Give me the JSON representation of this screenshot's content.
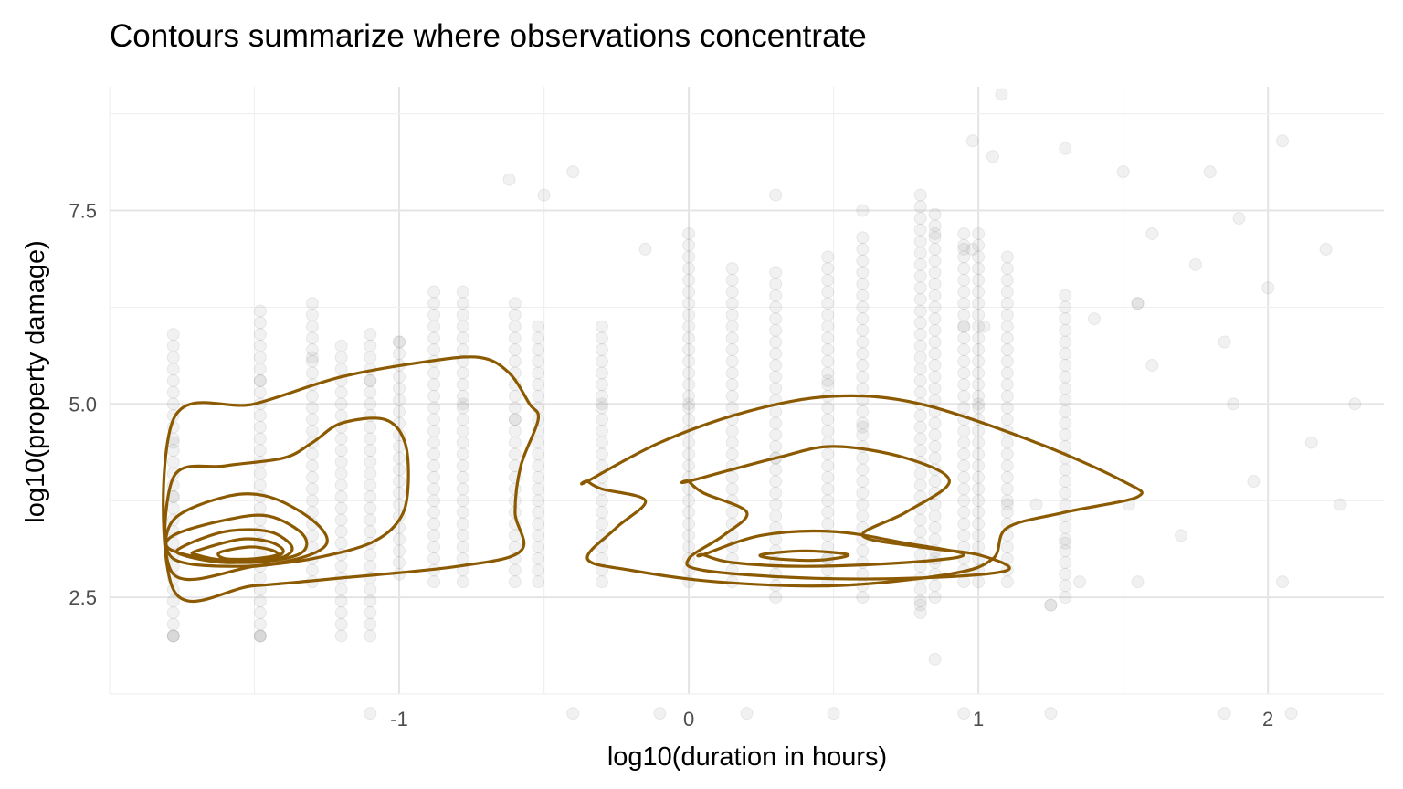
{
  "chart_data": {
    "type": "scatter",
    "title": "Contours summarize where observations concentrate",
    "xlabel": "log10(duration in hours)",
    "ylabel": "log10(property damage)",
    "xlim": [
      -2.0,
      2.4
    ],
    "ylim": [
      1.25,
      9.1
    ],
    "x_ticks": [
      -1,
      0,
      1,
      2
    ],
    "x_tick_labels": [
      "-1",
      "0",
      "1",
      "2"
    ],
    "y_ticks": [
      2.5,
      5.0,
      7.5
    ],
    "y_tick_labels": [
      "2.5",
      "5.0",
      "7.5"
    ],
    "grid": true,
    "legend": "none",
    "colors": {
      "points": "#8c8c8c",
      "contours": "#8B5A00",
      "grid": "#e4e4e4"
    },
    "point_columns": {
      "x": [
        -1.78,
        -1.48,
        -1.3,
        -1.2,
        -1.1,
        -1.0,
        -0.88,
        -0.78,
        -0.6,
        -0.52,
        -0.3,
        0.0,
        0.15,
        0.3,
        0.48,
        0.6,
        0.8,
        0.85,
        0.95,
        1.0,
        1.1,
        1.3
      ],
      "y_min": [
        2.0,
        2.0,
        2.7,
        2.0,
        2.0,
        2.8,
        2.7,
        2.7,
        2.7,
        2.7,
        2.7,
        2.7,
        2.7,
        2.5,
        2.7,
        2.5,
        2.3,
        2.5,
        2.7,
        2.7,
        2.7,
        2.5
      ],
      "y_max": [
        6.0,
        6.2,
        6.3,
        5.8,
        5.9,
        5.8,
        6.5,
        6.5,
        6.3,
        6.0,
        6.0,
        7.2,
        6.8,
        6.8,
        7.0,
        7.2,
        7.7,
        7.5,
        7.3,
        7.2,
        7.0,
        6.5
      ]
    },
    "point_scatter": [
      {
        "x": 1.08,
        "y": 9.0
      },
      {
        "x": 0.98,
        "y": 8.4
      },
      {
        "x": 1.05,
        "y": 8.2
      },
      {
        "x": 1.3,
        "y": 8.3
      },
      {
        "x": 1.5,
        "y": 8.0
      },
      {
        "x": 1.8,
        "y": 8.0
      },
      {
        "x": 2.05,
        "y": 8.4
      },
      {
        "x": 1.6,
        "y": 7.2
      },
      {
        "x": 1.9,
        "y": 7.4
      },
      {
        "x": 2.2,
        "y": 7.0
      },
      {
        "x": 2.0,
        "y": 6.5
      },
      {
        "x": 2.3,
        "y": 5.0
      },
      {
        "x": 2.15,
        "y": 4.5
      },
      {
        "x": 1.75,
        "y": 6.8
      },
      {
        "x": 1.4,
        "y": 6.1
      },
      {
        "x": 1.6,
        "y": 5.5
      },
      {
        "x": 1.85,
        "y": 5.8
      },
      {
        "x": 1.95,
        "y": 4.0
      },
      {
        "x": 2.25,
        "y": 3.7
      },
      {
        "x": 1.7,
        "y": 3.3
      },
      {
        "x": 1.35,
        "y": 2.7
      },
      {
        "x": 1.55,
        "y": 2.7
      },
      {
        "x": 2.05,
        "y": 2.7
      },
      {
        "x": 0.5,
        "y": 1.0
      },
      {
        "x": 0.95,
        "y": 1.0
      },
      {
        "x": 1.25,
        "y": 1.0
      },
      {
        "x": 1.85,
        "y": 1.0
      },
      {
        "x": 2.08,
        "y": 1.0
      },
      {
        "x": 0.2,
        "y": 1.0
      },
      {
        "x": -0.4,
        "y": 1.0
      },
      {
        "x": -0.1,
        "y": 1.0
      },
      {
        "x": -1.1,
        "y": 1.0
      },
      {
        "x": 0.85,
        "y": 1.7
      },
      {
        "x": -0.5,
        "y": 7.7
      },
      {
        "x": -0.4,
        "y": 8.0
      },
      {
        "x": -0.62,
        "y": 7.9
      },
      {
        "x": -0.15,
        "y": 7.0
      },
      {
        "x": 0.3,
        "y": 7.7
      },
      {
        "x": 0.6,
        "y": 7.5
      },
      {
        "x": 1.55,
        "y": 6.3
      },
      {
        "x": 1.02,
        "y": 6.0
      },
      {
        "x": 0.98,
        "y": 7.0
      },
      {
        "x": 1.88,
        "y": 5.0
      },
      {
        "x": 1.25,
        "y": 2.4
      },
      {
        "x": -1.48,
        "y": 2.0
      },
      {
        "x": -1.78,
        "y": 2.0
      },
      {
        "x": 1.52,
        "y": 3.7
      },
      {
        "x": 1.2,
        "y": 3.7
      }
    ],
    "point_highlights": [
      {
        "x": -1.78,
        "y": 2.0
      },
      {
        "x": -1.48,
        "y": 2.0
      },
      {
        "x": -1.78,
        "y": 3.8
      },
      {
        "x": -1.78,
        "y": 4.5
      },
      {
        "x": -1.48,
        "y": 5.3
      },
      {
        "x": -1.3,
        "y": 5.6
      },
      {
        "x": -1.1,
        "y": 5.3
      },
      {
        "x": -1.0,
        "y": 5.8
      },
      {
        "x": -0.78,
        "y": 5.0
      },
      {
        "x": -0.6,
        "y": 4.8
      },
      {
        "x": -0.3,
        "y": 5.0
      },
      {
        "x": 0.0,
        "y": 5.0
      },
      {
        "x": 0.3,
        "y": 4.3
      },
      {
        "x": 0.48,
        "y": 5.3
      },
      {
        "x": 0.6,
        "y": 4.7
      },
      {
        "x": 0.85,
        "y": 7.2
      },
      {
        "x": 0.95,
        "y": 6.0
      },
      {
        "x": 0.95,
        "y": 7.0
      },
      {
        "x": 1.0,
        "y": 5.0
      },
      {
        "x": 1.1,
        "y": 3.7
      },
      {
        "x": 1.3,
        "y": 3.2
      },
      {
        "x": 1.55,
        "y": 6.3
      },
      {
        "x": 0.8,
        "y": 2.4
      },
      {
        "x": 1.25,
        "y": 2.4
      },
      {
        "x": 0.85,
        "y": 3.0
      },
      {
        "x": 0.48,
        "y": 3.0
      }
    ],
    "contours": [
      {
        "name": "",
        "points": [
          [
            -1.78,
            4.8
          ],
          [
            -1.5,
            5.0
          ],
          [
            -1.2,
            5.35
          ],
          [
            -0.9,
            5.55
          ],
          [
            -0.72,
            5.6
          ],
          [
            -0.62,
            5.4
          ],
          [
            -0.55,
            5.0
          ],
          [
            -0.52,
            4.8
          ],
          [
            -0.58,
            4.2
          ],
          [
            -0.6,
            3.6
          ],
          [
            -0.58,
            3.1
          ],
          [
            -0.8,
            2.9
          ],
          [
            -1.2,
            2.75
          ],
          [
            -1.5,
            2.65
          ],
          [
            -1.78,
            2.6
          ]
        ]
      },
      {
        "name": "",
        "points": [
          [
            -1.78,
            4.05
          ],
          [
            -1.6,
            4.2
          ],
          [
            -1.4,
            4.3
          ],
          [
            -1.3,
            4.5
          ],
          [
            -1.2,
            4.75
          ],
          [
            -1.05,
            4.8
          ],
          [
            -0.98,
            4.5
          ],
          [
            -0.97,
            3.9
          ],
          [
            -1.0,
            3.5
          ],
          [
            -1.1,
            3.2
          ],
          [
            -1.3,
            3.0
          ],
          [
            -1.5,
            2.9
          ],
          [
            -1.78,
            2.8
          ]
        ]
      },
      {
        "name": "",
        "points": [
          [
            -1.78,
            3.5
          ],
          [
            -1.6,
            3.8
          ],
          [
            -1.45,
            3.8
          ],
          [
            -1.3,
            3.5
          ],
          [
            -1.25,
            3.2
          ],
          [
            -1.35,
            3.0
          ],
          [
            -1.55,
            2.9
          ],
          [
            -1.78,
            3.0
          ]
        ]
      },
      {
        "name": "",
        "points": [
          [
            -1.78,
            3.3
          ],
          [
            -1.6,
            3.5
          ],
          [
            -1.45,
            3.55
          ],
          [
            -1.33,
            3.3
          ],
          [
            -1.35,
            3.05
          ],
          [
            -1.55,
            2.95
          ],
          [
            -1.78,
            3.1
          ]
        ]
      },
      {
        "name": "",
        "points": [
          [
            -1.75,
            3.15
          ],
          [
            -1.6,
            3.35
          ],
          [
            -1.45,
            3.35
          ],
          [
            -1.37,
            3.15
          ],
          [
            -1.42,
            3.0
          ],
          [
            -1.6,
            2.95
          ],
          [
            -1.75,
            3.05
          ]
        ]
      },
      {
        "name": "",
        "points": [
          [
            -1.7,
            3.1
          ],
          [
            -1.55,
            3.25
          ],
          [
            -1.45,
            3.22
          ],
          [
            -1.4,
            3.1
          ],
          [
            -1.45,
            3.0
          ],
          [
            -1.6,
            2.98
          ],
          [
            -1.7,
            3.05
          ]
        ]
      },
      {
        "name": "",
        "points": [
          [
            -1.62,
            3.08
          ],
          [
            -1.52,
            3.15
          ],
          [
            -1.45,
            3.12
          ],
          [
            -1.42,
            3.05
          ],
          [
            -1.5,
            3.0
          ],
          [
            -1.6,
            3.0
          ]
        ]
      },
      {
        "name": "",
        "points": [
          [
            -0.35,
            4.0
          ],
          [
            -0.1,
            4.5
          ],
          [
            0.2,
            4.9
          ],
          [
            0.5,
            5.1
          ],
          [
            0.8,
            5.0
          ],
          [
            1.2,
            4.5
          ],
          [
            1.5,
            4.0
          ],
          [
            1.55,
            3.8
          ],
          [
            1.3,
            3.6
          ],
          [
            1.1,
            3.4
          ],
          [
            1.05,
            3.0
          ],
          [
            0.9,
            2.8
          ],
          [
            0.5,
            2.65
          ],
          [
            0.1,
            2.7
          ],
          [
            -0.2,
            2.85
          ],
          [
            -0.35,
            3.0
          ],
          [
            -0.25,
            3.4
          ],
          [
            -0.15,
            3.75
          ],
          [
            -0.3,
            3.9
          ],
          [
            -0.35,
            4.0
          ]
        ]
      },
      {
        "name": "",
        "points": [
          [
            0.0,
            4.0
          ],
          [
            0.3,
            4.3
          ],
          [
            0.5,
            4.45
          ],
          [
            0.75,
            4.3
          ],
          [
            0.9,
            4.0
          ],
          [
            0.75,
            3.6
          ],
          [
            0.6,
            3.3
          ],
          [
            0.8,
            3.15
          ],
          [
            1.0,
            3.05
          ],
          [
            1.1,
            2.85
          ],
          [
            0.8,
            2.75
          ],
          [
            0.4,
            2.75
          ],
          [
            0.05,
            2.85
          ],
          [
            0.0,
            3.0
          ],
          [
            0.12,
            3.3
          ],
          [
            0.2,
            3.6
          ],
          [
            0.05,
            3.85
          ],
          [
            0.0,
            4.0
          ]
        ]
      },
      {
        "name": "",
        "points": [
          [
            0.05,
            3.05
          ],
          [
            0.25,
            3.3
          ],
          [
            0.5,
            3.35
          ],
          [
            0.75,
            3.2
          ],
          [
            0.95,
            3.05
          ],
          [
            0.75,
            2.95
          ],
          [
            0.4,
            2.9
          ],
          [
            0.15,
            2.95
          ],
          [
            0.05,
            3.05
          ]
        ]
      },
      {
        "name": "",
        "points": [
          [
            0.25,
            3.05
          ],
          [
            0.4,
            3.1
          ],
          [
            0.55,
            3.05
          ],
          [
            0.45,
            2.98
          ],
          [
            0.3,
            3.0
          ]
        ]
      }
    ]
  }
}
